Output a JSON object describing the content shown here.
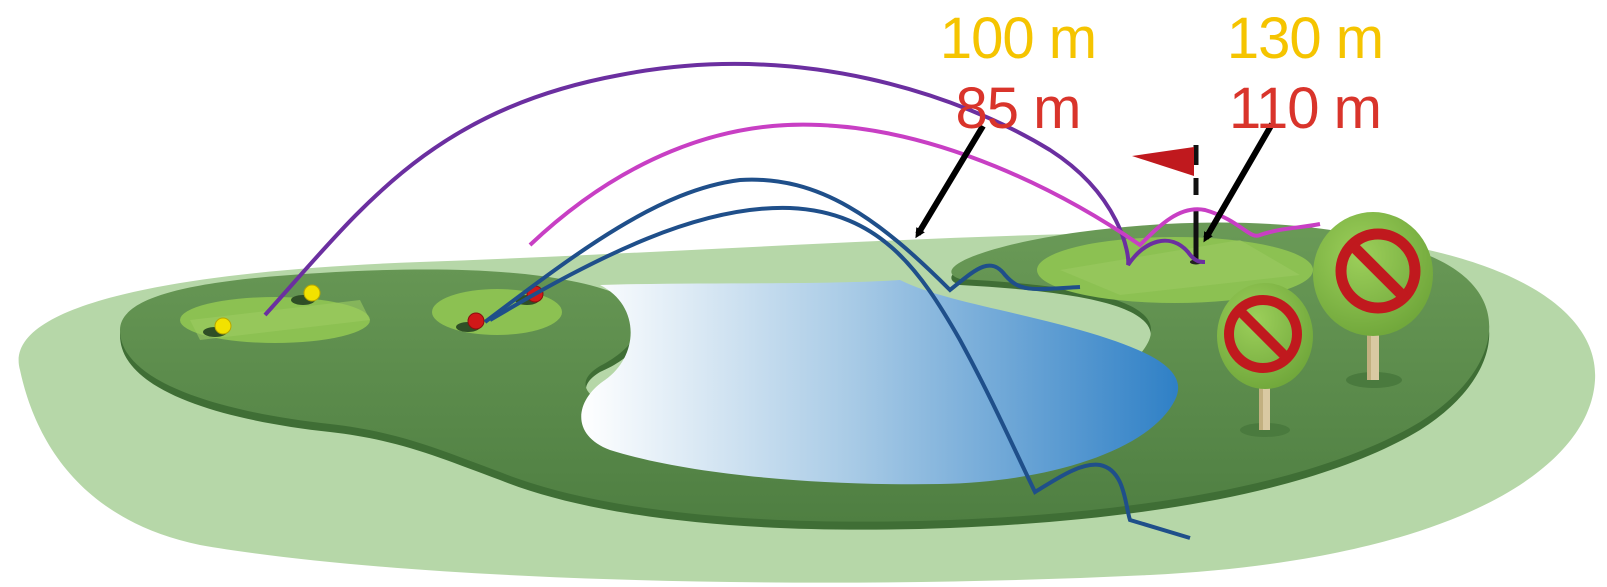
{
  "labels": {
    "pond_yellow": "100 m",
    "pond_red": "85 m",
    "green_yellow": "130 m",
    "green_red": "110 m"
  },
  "colors": {
    "yellow_text": "#f5c400",
    "red_text": "#d9342b",
    "outer_field": "#b6d7a8",
    "course_dark": "#5a8a4c",
    "tee_light": "#8cc152",
    "water_deep": "#3a86c8",
    "shot_purple": "#6b2fa0",
    "shot_magenta": "#c83fc4",
    "shot_blue": "#1f4f8a",
    "flag_red": "#c0191e",
    "no_sign_red": "#c0191e"
  },
  "icons": [
    "flag-icon",
    "no-entry-icon",
    "golf-ball-icon",
    "arrow-icon",
    "tree-icon"
  ]
}
